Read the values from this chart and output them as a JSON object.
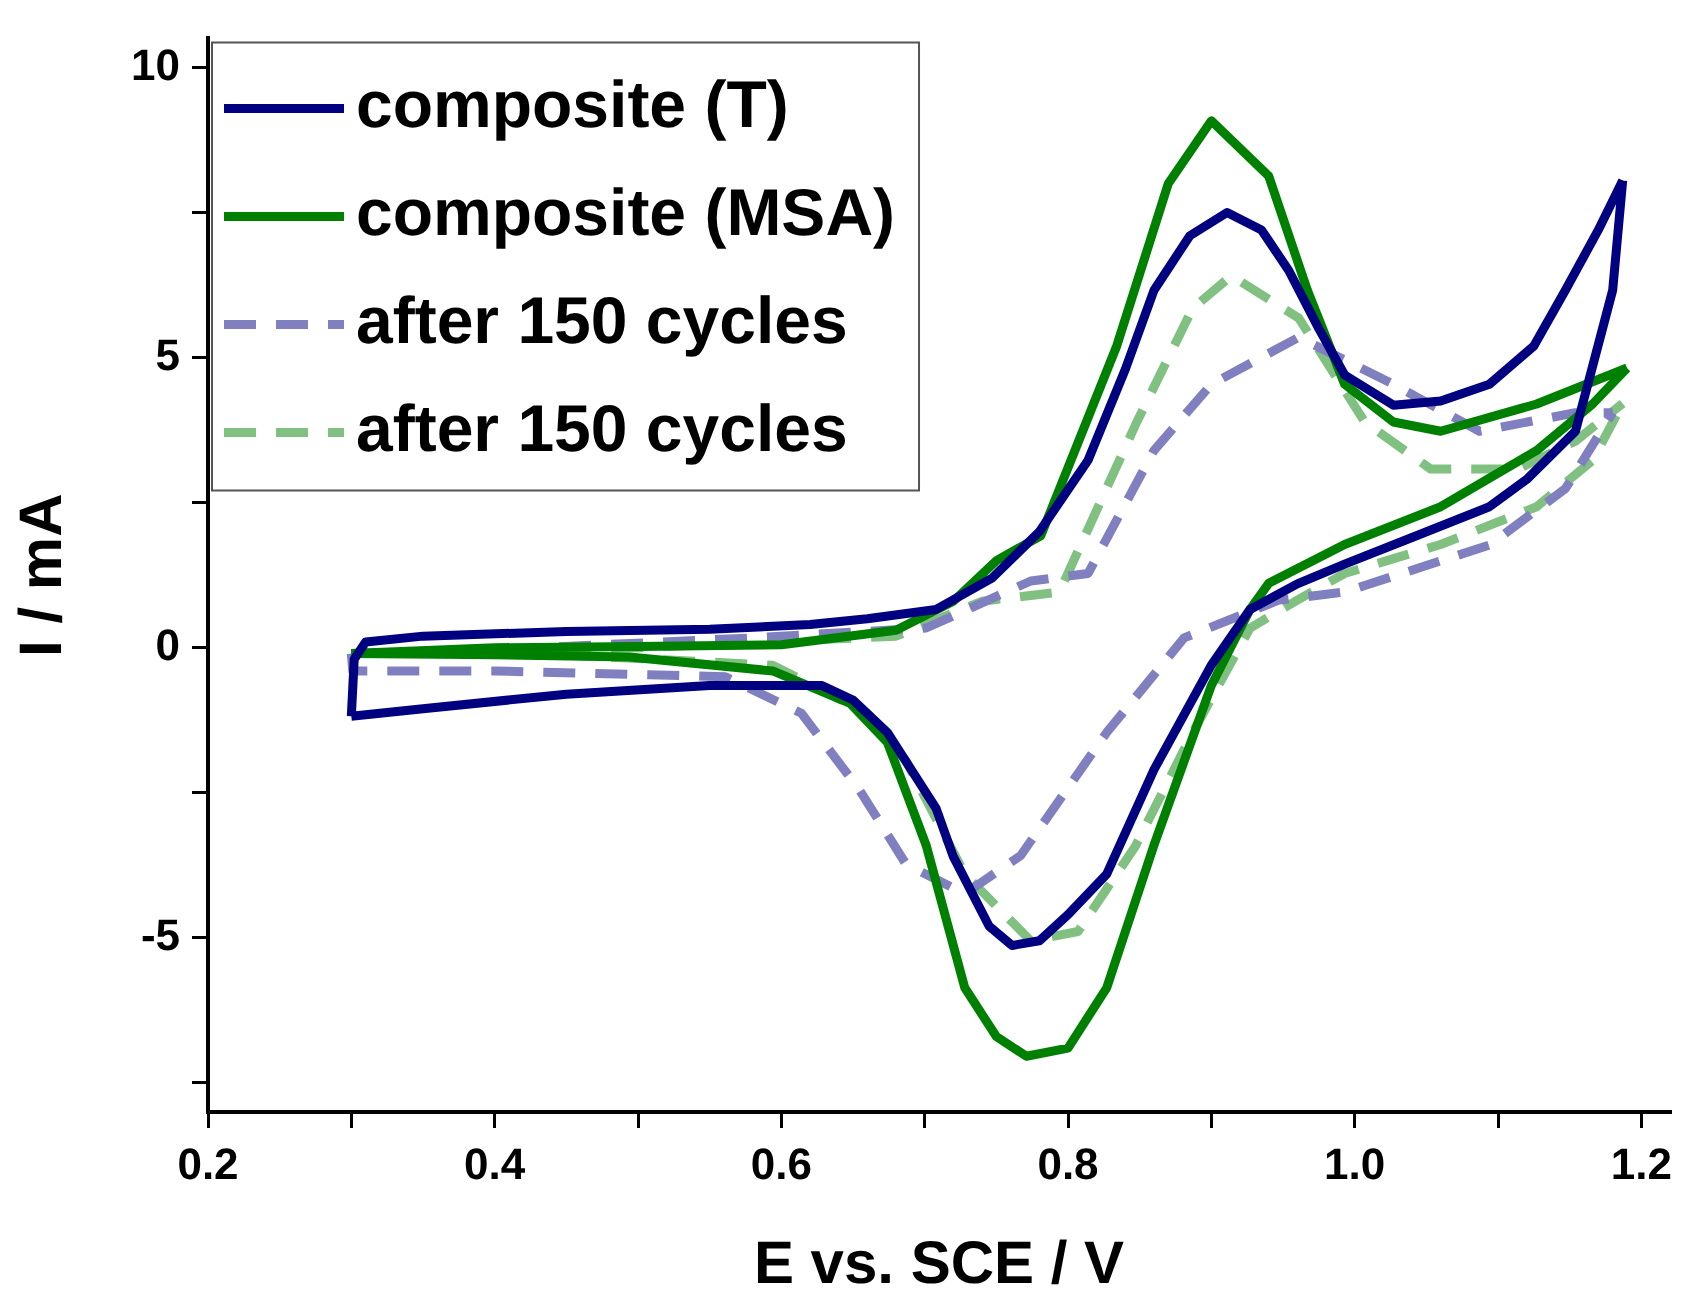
{
  "chart_data": {
    "type": "line",
    "xlabel": "E vs. SCE / V",
    "ylabel": "I / mA",
    "xlim": [
      0.2,
      1.22
    ],
    "ylim": [
      -8,
      10.5
    ],
    "xticks": [
      0.2,
      {
        "value": 0.3,
        "label": null
      },
      0.4,
      {
        "value": 0.5,
        "label": null
      },
      0.6,
      {
        "value": 0.7,
        "label": null
      },
      0.8,
      {
        "value": 0.9,
        "label": null
      },
      {
        "value": 1.0,
        "label": "1.0"
      },
      {
        "value": 1.1,
        "label": null
      },
      1.2
    ],
    "yticks": [
      {
        "value": -7.5,
        "label": null
      },
      -5,
      {
        "value": -2.5,
        "label": null
      },
      0,
      {
        "value": 2.5,
        "label": null
      },
      5,
      {
        "value": 7.5,
        "label": null
      },
      10
    ],
    "grid": false,
    "legend": "top left",
    "marker": "none",
    "series": [
      {
        "name": "composite (T)",
        "color": "#000080",
        "line_style": "solid",
        "x": [
          0.3,
          0.302,
          0.31,
          0.35,
          0.45,
          0.55,
          0.62,
          0.66,
          0.708,
          0.747,
          0.78,
          0.814,
          0.84,
          0.86,
          0.885,
          0.911,
          0.935,
          0.954,
          0.975,
          0.993,
          1.027,
          1.06,
          1.094,
          1.125,
          1.147,
          1.17,
          1.187
        ],
        "values": [
          -1.18,
          -0.2,
          0.1,
          0.2,
          0.28,
          0.32,
          0.4,
          0.5,
          0.66,
          1.2,
          2.0,
          3.23,
          4.8,
          6.16,
          7.1,
          7.5,
          7.2,
          6.5,
          5.5,
          4.7,
          4.18,
          4.25,
          4.54,
          5.2,
          6.16,
          7.2,
          8.05
        ]
      },
      {
        "color": "#000080",
        "line_style": "solid",
        "x": [
          0.3,
          0.35,
          0.45,
          0.55,
          0.628,
          0.65,
          0.674,
          0.708,
          0.72,
          0.745,
          0.761,
          0.78,
          0.8,
          0.827,
          0.86,
          0.88,
          0.9,
          0.927,
          0.96,
          0.993,
          1.04,
          1.094,
          1.12,
          1.154,
          1.18,
          1.187
        ],
        "values": [
          -1.18,
          -1.05,
          -0.8,
          -0.65,
          -0.65,
          -0.9,
          -1.46,
          -2.77,
          -3.6,
          -4.8,
          -5.13,
          -5.05,
          -4.6,
          -3.9,
          -2.1,
          -1.2,
          -0.3,
          0.66,
          1.1,
          1.44,
          1.9,
          2.43,
          2.9,
          3.73,
          6.16,
          8.05
        ]
      },
      {
        "name": "composite (MSA)",
        "color": "#008000",
        "line_style": "solid",
        "x": [
          0.3,
          0.4,
          0.5,
          0.6,
          0.68,
          0.72,
          0.75,
          0.781,
          0.834,
          0.87,
          0.9,
          0.94,
          0.967,
          0.993,
          1.027,
          1.06,
          1.127,
          1.19
        ],
        "values": [
          -0.1,
          0.0,
          0.02,
          0.05,
          0.3,
          0.8,
          1.5,
          1.93,
          5.2,
          8.0,
          9.08,
          8.13,
          6.16,
          4.54,
          3.89,
          3.73,
          4.2,
          4.82
        ]
      },
      {
        "color": "#008000",
        "line_style": "solid",
        "x": [
          0.3,
          0.4,
          0.494,
          0.594,
          0.648,
          0.674,
          0.701,
          0.728,
          0.75,
          0.771,
          0.8,
          0.827,
          0.86,
          0.9,
          0.927,
          0.94,
          0.993,
          1.06,
          1.127,
          1.166,
          1.19
        ],
        "values": [
          -0.1,
          -0.12,
          -0.16,
          -0.4,
          -0.96,
          -1.63,
          -3.4,
          -5.86,
          -6.7,
          -7.04,
          -6.9,
          -5.86,
          -3.4,
          -0.65,
          0.66,
          1.11,
          1.78,
          2.43,
          3.4,
          4.2,
          4.82
        ]
      },
      {
        "name": "after 150 cycles",
        "color": "#8080c0",
        "line_style": "dashed",
        "x": [
          0.3,
          0.43,
          0.58,
          0.701,
          0.774,
          0.814,
          0.86,
          0.9,
          0.961,
          1.027,
          1.087,
          1.154,
          1.18
        ],
        "values": [
          -0.1,
          0.0,
          0.17,
          0.34,
          1.15,
          1.28,
          3.4,
          4.54,
          5.35,
          4.54,
          3.73,
          4.05,
          4.05
        ]
      },
      {
        "color": "#8080c0",
        "line_style": "dashed",
        "x": [
          0.3,
          0.301,
          0.4,
          0.561,
          0.614,
          0.654,
          0.687,
          0.728,
          0.767,
          0.827,
          0.881,
          0.947,
          0.993,
          1.094,
          1.147,
          1.18
        ],
        "values": [
          -0.1,
          -0.4,
          -0.4,
          -0.5,
          -1.13,
          -2.43,
          -3.73,
          -4.24,
          -3.58,
          -1.46,
          0.17,
          0.82,
          0.96,
          1.77,
          2.74,
          4.05
        ]
      },
      {
        "name": "after 150 cycles",
        "color": "#80c080",
        "line_style": "dashed",
        "x": [
          0.3,
          0.5,
          0.68,
          0.74,
          0.794,
          0.848,
          0.887,
          0.914,
          0.961,
          1.007,
          1.053,
          1.114,
          1.154,
          1.187
        ],
        "values": [
          -0.1,
          0.0,
          0.2,
          0.8,
          0.96,
          3.89,
          5.85,
          6.41,
          5.68,
          3.89,
          3.08,
          3.08,
          3.56,
          4.21
        ]
      },
      {
        "color": "#80c080",
        "line_style": "dashed",
        "x": [
          0.3,
          0.43,
          0.594,
          0.66,
          0.687,
          0.728,
          0.774,
          0.807,
          0.847,
          0.887,
          0.927,
          0.96,
          0.993,
          1.06,
          1.127,
          1.166,
          1.187
        ],
        "values": [
          -0.1,
          -0.1,
          -0.3,
          -1.13,
          -1.95,
          -3.9,
          -5.05,
          -4.89,
          -3.42,
          -1.46,
          0.34,
          0.82,
          1.28,
          1.78,
          2.43,
          3.23,
          4.21
        ]
      }
    ]
  }
}
